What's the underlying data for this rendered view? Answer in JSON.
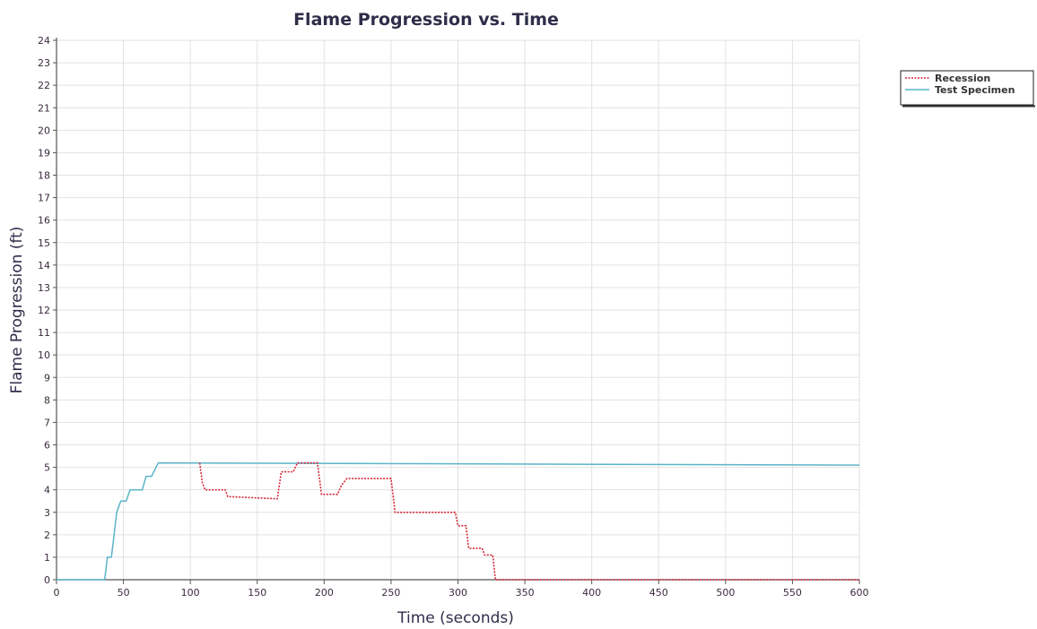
{
  "chart_data": {
    "type": "line",
    "title": "Flame Progression vs. Time",
    "xlabel": "Time (seconds)",
    "ylabel": "Flame Progression (ft)",
    "xlim": [
      0,
      600
    ],
    "ylim": [
      0,
      24
    ],
    "x_ticks": [
      "0",
      "50",
      "100",
      "150",
      "200",
      "250",
      "300",
      "350",
      "400",
      "450",
      "500",
      "550",
      "600"
    ],
    "y_ticks": [
      "0",
      "1",
      "2",
      "3",
      "4",
      "5",
      "6",
      "7",
      "8",
      "9",
      "10",
      "11",
      "12",
      "13",
      "14",
      "15",
      "16",
      "17",
      "18",
      "19",
      "20",
      "21",
      "22",
      "23",
      "24"
    ],
    "grid": true,
    "legend_position": "top-right",
    "series": [
      {
        "name": "Recession",
        "color": "#d42a3a",
        "style": "dotted",
        "points": [
          [
            107,
            5.2
          ],
          [
            109,
            4.3
          ],
          [
            111,
            4.0
          ],
          [
            126,
            4.0
          ],
          [
            128,
            3.7
          ],
          [
            165,
            3.6
          ],
          [
            168,
            4.8
          ],
          [
            177,
            4.8
          ],
          [
            180,
            5.2
          ],
          [
            195,
            5.2
          ],
          [
            198,
            3.8
          ],
          [
            210,
            3.8
          ],
          [
            213,
            4.2
          ],
          [
            217,
            4.5
          ],
          [
            250,
            4.5
          ],
          [
            253,
            3.0
          ],
          [
            298,
            3.0
          ],
          [
            300,
            2.4
          ],
          [
            306,
            2.4
          ],
          [
            308,
            1.4
          ],
          [
            318,
            1.4
          ],
          [
            320,
            1.1
          ],
          [
            326,
            1.1
          ],
          [
            328,
            0
          ],
          [
            600,
            0
          ]
        ]
      },
      {
        "name": "Test Specimen",
        "color": "#5ab4c8",
        "style": "solid",
        "points": [
          [
            0,
            0
          ],
          [
            36,
            0
          ],
          [
            38,
            1.0
          ],
          [
            41,
            1.0
          ],
          [
            45,
            3.0
          ],
          [
            48,
            3.5
          ],
          [
            52,
            3.5
          ],
          [
            55,
            4.0
          ],
          [
            64,
            4.0
          ],
          [
            67,
            4.6
          ],
          [
            71,
            4.6
          ],
          [
            76,
            5.2
          ],
          [
            600,
            5.1
          ]
        ]
      }
    ]
  }
}
